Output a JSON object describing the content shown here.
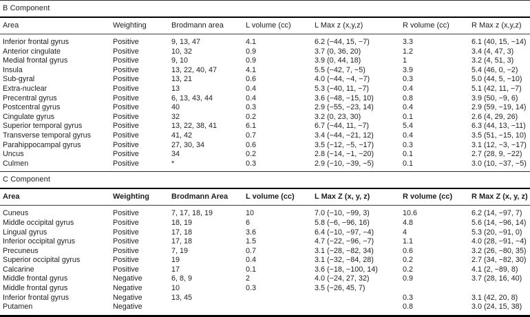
{
  "colors": {
    "background": "#ffffff",
    "text": "#1d1d1d",
    "rule": "#000000"
  },
  "sections": [
    {
      "title": "B Component",
      "headers": [
        "Area",
        "Weighting",
        "Brodmann area",
        "L volume (cc)",
        "L Max z (x,y,z)",
        "R volume (cc)",
        "R Max z (x,y,z)"
      ],
      "rows": [
        [
          "Inferior frontal gyrus",
          "Positive",
          "9, 13, 47",
          "4.1",
          "6.2 (−44, 15, −7)",
          "3.3",
          "6.1 (40, 15, −14)"
        ],
        [
          "Anterior cingulate",
          "Positive",
          "10, 32",
          "0.9",
          "3.7 (0, 36, 20)",
          "1.2",
          "3.4 (4, 47, 3)"
        ],
        [
          "Medial frontal gyrus",
          "Positive",
          "9, 10",
          "0.9",
          "3.9 (0, 44, 18)",
          "1",
          "3.2 (4, 51, 3)"
        ],
        [
          "Insula",
          "Positive",
          "13, 22, 40, 47",
          "4.1",
          "5.5 (−42, 7, −5)",
          "3.9",
          "5.4 (46, 0, −2)"
        ],
        [
          "Sub-gyral",
          "Positive",
          "13, 21",
          "0.6",
          "4.0 (−44, −4, −7)",
          "0.3",
          "5.0 (44, 5, −10)"
        ],
        [
          "Extra-nuclear",
          "Positive",
          "13",
          "0.4",
          "5.3 (−40, 11, −7)",
          "0.4",
          "5.1 (42, 11, −7)"
        ],
        [
          "Precentral gyrus",
          "Positive",
          "6, 13, 43, 44",
          "0.4",
          "3.6 (−48, −15, 10)",
          "0.8",
          "3.9 (50, −9, 6)"
        ],
        [
          "Postcentral gyrus",
          "Positive",
          "40",
          "0.3",
          "2.9 (−55, −23, 14)",
          "0.4",
          "2.9 (59, −19, 14)"
        ],
        [
          "Cingulate gyrus",
          "Positive",
          "32",
          "0.2",
          "3.2 (0, 23, 30)",
          "0.1",
          "2.6 (4, 29, 26)"
        ],
        [
          "Superior temporal gyrus",
          "Positive",
          "13, 22, 38, 41",
          "6.1",
          "6.7 (−44, 11, −7)",
          "5.4",
          "6.3 (44, 13, −11)"
        ],
        [
          "Transverse temporal gyrus",
          "Positive",
          "41, 42",
          "0.7",
          "3.4 (−44, −21, 12)",
          "0.4",
          "3.5 (51, −15, 10)"
        ],
        [
          "Parahippocampal gyrus",
          "Positive",
          "27, 30, 34",
          "0.6",
          "3.5 (−12, −5, −17)",
          "0.3",
          "3.1 (12, −3, −17)"
        ],
        [
          "Uncus",
          "Positive",
          "34",
          "0.2",
          "2.8 (−14, −1, −20)",
          "0.1",
          "2.7 (28, 9, −22)"
        ],
        [
          "Culmen",
          "Positive",
          "*",
          "0.3",
          "2.9 (−10, −39, −5)",
          "0.1",
          "3.0 (10, −37, −5)"
        ]
      ]
    },
    {
      "title": "C Component",
      "headers": [
        "Area",
        "Weighting",
        "Brodmann Area",
        "L volume (cc)",
        "L Max Z (x, y, z)",
        "R volume (cc)",
        "R Max Z (x, y, z)"
      ],
      "rows": [
        [
          "Cuneus",
          "Positive",
          "7, 17, 18, 19",
          "10",
          "7.0 (−10, −99, 3)",
          "10.6",
          "6.2 (14, −97, 7)"
        ],
        [
          "Middle occipital gyrus",
          "Positive",
          "18, 19",
          "6",
          "5.8 (−6, −96, 16)",
          "4.8",
          "5.6 (14, −96, 14)"
        ],
        [
          "Lingual gyrus",
          "Positive",
          "17, 18",
          "3.6",
          "6.4 (−10, −97, −4)",
          "4",
          "5.3 (20, −91, 0)"
        ],
        [
          "Inferior occipital gyrus",
          "Positive",
          "17, 18",
          "1.5",
          "4.7 (−22, −96, −7)",
          "1.1",
          "4.0 (28, −91, −4)"
        ],
        [
          "Precuneus",
          "Positive",
          "7, 19",
          "0.7",
          "3.1 (−28, −82, 34)",
          "0.6",
          "3.2 (26, −80, 35)"
        ],
        [
          "Superior occipital gyrus",
          "Positive",
          "19",
          "0.4",
          "3.1 (−32, −84, 28)",
          "0.2",
          "2.7 (34, −82, 30)"
        ],
        [
          "Calcarine",
          "Positive",
          "17",
          "0.1",
          "3.6 (−18, −100, 14)",
          "0.2",
          "4.1 (2, −89, 8)"
        ],
        [
          "Middle frontal gyrus",
          "Negative",
          "6, 8, 9",
          "2",
          "4.0 (−24, 27, 32)",
          "0.9",
          "3.7 (28, 16, 40)"
        ],
        [
          "Middle frontal gyrus",
          "Negative",
          "10",
          "0.3",
          "3.5 (−26, 45, 7)",
          "",
          ""
        ],
        [
          "Inferior frontal gyrus",
          "Negative",
          "13, 45",
          "",
          "",
          "0.3",
          "3.1 (42, 20, 8)"
        ],
        [
          "Putamen",
          "Negative",
          "",
          "",
          "",
          "0.8",
          "3.0 (24, 15, 38)"
        ]
      ]
    }
  ]
}
